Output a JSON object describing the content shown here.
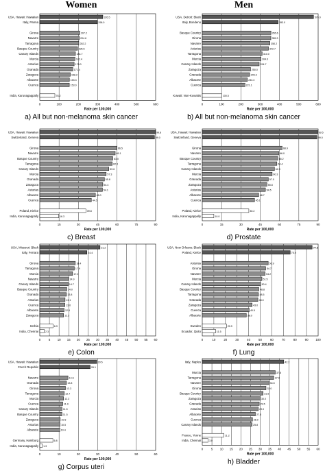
{
  "columns": [
    "Women",
    "Men"
  ],
  "chart_data": [
    {
      "type": "bar",
      "orientation": "horizontal",
      "caption": "a) All but non-melanoma skin cancer",
      "xlabel": "Rate per 100,000",
      "xlim": [
        0,
        600
      ],
      "ticks": [
        "0",
        "100",
        "200",
        "300",
        "400",
        "500",
        "600"
      ],
      "grid": true,
      "groups": [
        {
          "categories": [
            "USA, Hawaii: Hawaiian",
            "Italy, Parma"
          ],
          "values": [
            326.5,
            298.0
          ]
        },
        {
          "categories": [
            "Girona",
            "Navarre",
            "Tarragona",
            "Basque Country",
            "Canary Islands",
            "Murcia",
            "Asturias",
            "Granada",
            "Zaragoza",
            "Albacete",
            "Cuenca"
          ],
          "values": [
            207.2,
            204.6,
            202.2,
            195.5,
            184.7,
            182.4,
            178.0,
            171.4,
            158.2,
            153.3,
            153.0
          ]
        },
        {
          "categories": [
            "India, Karunagappally"
          ],
          "values": [
            78.2
          ]
        }
      ]
    },
    {
      "type": "bar",
      "orientation": "horizontal",
      "caption": "b) All but non-melanoma skin cancer",
      "xlabel": "Rate per 100,000",
      "xlim": [
        0,
        600
      ],
      "ticks": [
        "0",
        "100",
        "200",
        "300",
        "400",
        "500",
        "600"
      ],
      "grid": true,
      "groups": [
        {
          "categories": [
            "USA, Detroit: Black",
            "Italy, Bondeno"
          ],
          "values": [
            576.0,
            393.0
          ]
        },
        {
          "categories": [
            "Basque Country",
            "Girona",
            "Navarre",
            "Asturias",
            "Tarragona",
            "Murcia",
            "Canary Islands",
            "Zaragoza",
            "Granada",
            "Albacete",
            "Cuenca"
          ],
          "values": [
            355.6,
            355.3,
            350.2,
            342.7,
            310.0,
            304.0,
            294.7,
            250.0,
            245.3,
            233.3,
            221.1
          ]
        },
        {
          "categories": [
            "Kuwait: Non-Kuwaitis"
          ],
          "values": [
            100.5
          ]
        }
      ]
    },
    {
      "type": "bar",
      "orientation": "horizontal",
      "caption": "c) Breast",
      "xlabel": "Rate per 100,000",
      "xlim": [
        0,
        100
      ],
      "ticks": [
        "0",
        "15",
        "30",
        "45",
        "60",
        "75",
        "90"
      ],
      "grid": true,
      "groups": [
        {
          "categories": [
            "USA, Hawaii: Hawaiian",
            "Switzerland, Geneva"
          ],
          "values": [
            99.8,
            99.0
          ]
        },
        {
          "categories": [
            "Girona",
            "Navarre",
            "Basque Country",
            "Tarragona",
            "Canary Islands",
            "Murcia",
            "Granada",
            "Zaragoza",
            "Asturias",
            "Albacete",
            "Cuenca"
          ],
          "values": [
            66.5,
            65.1,
            63.0,
            62.5,
            59.6,
            57.3,
            55.8,
            54.4,
            54.1,
            48.0,
            44.5
          ]
        },
        {
          "categories": [
            "Poland, Kielce",
            "India, Karunagappally"
          ],
          "values": [
            39.8,
            16.3
          ]
        }
      ]
    },
    {
      "type": "bar",
      "orientation": "horizontal",
      "caption": "d) Prostate",
      "xlabel": "Rate per 100,000",
      "xlim": [
        0,
        100
      ],
      "ticks": [
        "0",
        "15",
        "30",
        "45",
        "60",
        "75",
        "90"
      ],
      "grid": true,
      "groups": [
        {
          "categories": [
            "USA, Hawaii: Hawaiian",
            "Switzerland, Geneva"
          ],
          "values": [
            99.5,
            99.0
          ]
        },
        {
          "categories": [
            "Girona",
            "Navarre",
            "Basque Country",
            "Tarragona",
            "Canary Islands",
            "Murcia",
            "Granada",
            "Zaragoza",
            "Asturias",
            "Albacete",
            "Cuenca"
          ],
          "values": [
            68.9,
            66.0,
            65.2,
            64.4,
            62.3,
            60.3,
            57.0,
            55.8,
            54.5,
            48.7,
            45.1
          ]
        },
        {
          "categories": [
            "Poland, Kielce",
            "India, Karunagappally"
          ],
          "values": [
            40.2,
            10.0
          ]
        }
      ]
    },
    {
      "type": "bar",
      "orientation": "horizontal",
      "caption": "e) Colon",
      "xlabel": "Rate per 100,000",
      "xlim": [
        0,
        60
      ],
      "ticks": [
        "0",
        "5",
        "10",
        "15",
        "20",
        "25",
        "30",
        "35",
        "40",
        "45",
        "50",
        "55",
        "60"
      ],
      "grid": true,
      "groups": [
        {
          "categories": [
            "USA, Missouri: Black",
            "Italy, Ferrara"
          ],
          "values": [
            31.2,
            24.4
          ]
        },
        {
          "categories": [
            "Girona",
            "Tarragona",
            "Murcia",
            "Navarre",
            "Canary Islands",
            "Basque Country",
            "Granada",
            "Asturias",
            "Cuenca",
            "Albacete",
            "Zaragoza"
          ],
          "values": [
            18.4,
            17.9,
            17.0,
            14.9,
            14.7,
            14.0,
            13.8,
            13.1,
            13.0,
            12.6,
            12.3
          ]
        },
        {
          "categories": [
            "Serbia",
            "India, Chennai"
          ],
          "values": [
            6.9,
            2.3
          ]
        }
      ]
    },
    {
      "type": "bar",
      "orientation": "horizontal",
      "caption": "f) Lung",
      "xlabel": "Rate per 100,000",
      "xlim": [
        0,
        100
      ],
      "ticks": [
        "0",
        "10",
        "20",
        "30",
        "40",
        "50",
        "60",
        "70",
        "80",
        "90",
        "100"
      ],
      "grid": true,
      "groups": [
        {
          "categories": [
            "USA, New Orleans: Black",
            "Poland, Kielce"
          ],
          "values": [
            94.8,
            75.9
          ]
        },
        {
          "categories": [
            "Asturias",
            "Girona",
            "Navarre",
            "Murcia",
            "Canary Islands",
            "Basque Country",
            "Tarragona",
            "Granada",
            "Zaragoza",
            "Cuenca",
            "Albacete"
          ],
          "values": [
            56.9,
            54.7,
            54.2,
            51.5,
            50.4,
            48.8,
            48.5,
            48.0,
            43.0,
            40.5,
            38.0
          ]
        },
        {
          "categories": [
            "Sweden",
            "Ecuador, Quito"
          ],
          "values": [
            20.9,
            11.5
          ]
        }
      ]
    },
    {
      "type": "bar",
      "orientation": "horizontal",
      "caption": "g) Corpus uteri",
      "xlabel": "Rate per 100,000",
      "xlim": [
        0,
        60
      ],
      "ticks": [
        "0",
        "10",
        "20",
        "30",
        "40",
        "50",
        "60"
      ],
      "grid": true,
      "groups": [
        {
          "categories": [
            "USA, Hawaii: Hawaiian",
            "Czech Republic"
          ],
          "values": [
            29.5,
            26.1
          ]
        },
        {
          "categories": [
            "Navarre",
            "Granada",
            "Girona",
            "Tarragona",
            "Murcia",
            "Cuenca",
            "Canary Islands",
            "Basque Country",
            "Zaragoza",
            "Asturias",
            "Albacete"
          ],
          "values": [
            14.6,
            13.8,
            13.3,
            12.7,
            12.3,
            11.9,
            11.5,
            11.5,
            10.6,
            10.5,
            10.4
          ]
        },
        {
          "categories": [
            "Germany, Hamburg",
            "India, Karunagappally"
          ],
          "values": [
            6.8,
            1.3
          ]
        }
      ]
    },
    {
      "type": "bar",
      "orientation": "horizontal",
      "caption": "h) Bladder",
      "xlabel": "Rate per 100,000",
      "xlim": [
        0,
        60
      ],
      "ticks": [
        "0",
        "5",
        "10",
        "15",
        "20",
        "25",
        "30",
        "35",
        "40",
        "45",
        "50",
        "55",
        "60"
      ],
      "grid": true,
      "groups": [
        {
          "categories": [
            "Italy, Naples"
          ],
          "values": [
            42.2
          ]
        },
        {
          "categories": [
            "Murcia",
            "Tarragona",
            "Navarre",
            "Girona",
            "Basque Country",
            "Zaragoza",
            "Granada",
            "Asturias",
            "Albacete",
            "Cuenca",
            "Canary Islands"
          ],
          "values": [
            37.8,
            37.0,
            34.5,
            33.0,
            31.5,
            30.0,
            29.5,
            29.0,
            27.5,
            26.0,
            25.8
          ]
        },
        {
          "categories": [
            "France, Yonne",
            "India, Chennai"
          ],
          "values": [
            11.2,
            3.0
          ]
        }
      ]
    }
  ]
}
